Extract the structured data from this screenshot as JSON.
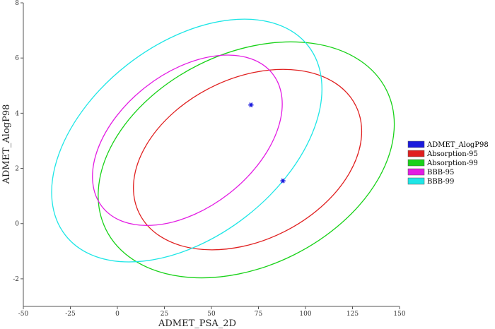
{
  "chart_data": {
    "type": "scatter",
    "title": "",
    "xlabel": "ADMET_PSA_2D",
    "ylabel": "ADMET_AlogP98",
    "xlim": [
      -50,
      150
    ],
    "ylim": [
      -3,
      8
    ],
    "xticks": [
      -50,
      -25,
      0,
      25,
      50,
      75,
      100,
      125,
      150
    ],
    "yticks": [
      -2,
      0,
      2,
      4,
      6,
      8
    ],
    "grid": false,
    "legend_position": "right",
    "series": [
      {
        "name": "ADMET_AlogP98",
        "kind": "points",
        "color": "#1a1adc",
        "marker": "star",
        "points": [
          {
            "x": 71,
            "y": 4.3
          },
          {
            "x": 88,
            "y": 1.55
          }
        ]
      },
      {
        "name": "Absorption-95",
        "kind": "ellipse",
        "color": "#e02020",
        "center": [
          69.2,
          2.32
        ],
        "semi_axes": [
          64.3,
          2.93
        ],
        "rotation_deg": -26.5
      },
      {
        "name": "Absorption-99",
        "kind": "ellipse",
        "color": "#19d219",
        "center": [
          68.5,
          2.31
        ],
        "semi_axes": [
          83.3,
          3.85
        ],
        "rotation_deg": -26.5
      },
      {
        "name": "BBB-95",
        "kind": "ellipse",
        "color": "#e31ce3",
        "center": [
          37.2,
          3.02
        ],
        "semi_axes": [
          57.5,
          2.45
        ],
        "rotation_deg": -38
      },
      {
        "name": "BBB-99",
        "kind": "ellipse",
        "color": "#1ee6e6",
        "center": [
          36.9,
          3.01
        ],
        "semi_axes": [
          81.9,
          3.49
        ],
        "rotation_deg": -38
      }
    ]
  }
}
